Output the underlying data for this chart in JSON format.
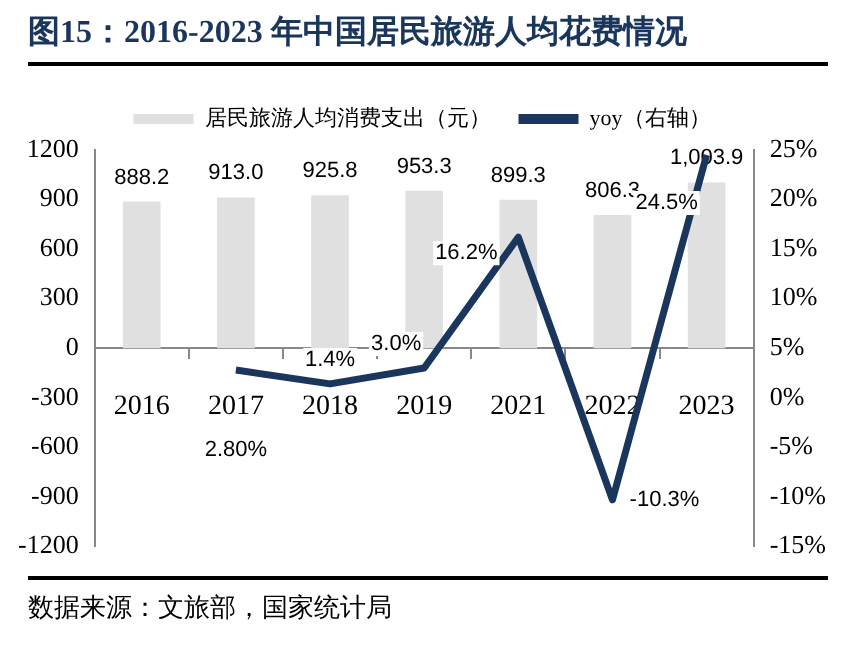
{
  "chart_data": {
    "type": "bar",
    "title": "图15：2016-2023 年中国居民旅游人均花费情况",
    "categories": [
      "2016",
      "2017",
      "2018",
      "2019",
      "2021",
      "2022",
      "2023"
    ],
    "series": [
      {
        "name": "居民旅游人均消费支出（元）",
        "color": "#e0e0e0",
        "values": [
          888.2,
          913.0,
          925.8,
          953.3,
          899.3,
          806.3,
          1003.9
        ],
        "value_labels": [
          "888.2",
          "913.0",
          "925.8",
          "953.3",
          "899.3",
          "806.3",
          "1,003.9"
        ]
      },
      {
        "name": "yoy（右轴）",
        "type": "line",
        "axis": "y2",
        "color": "#1b365d",
        "values": [
          null,
          2.8,
          1.4,
          3.0,
          16.2,
          -10.3,
          24.5
        ],
        "value_labels": [
          null,
          "2.80%",
          "1.4%",
          "3.0%",
          "16.2%",
          "-10.3%",
          "24.5%"
        ]
      }
    ],
    "ylim": [
      -1200,
      1200
    ],
    "yticks": [
      -1200,
      -900,
      -600,
      -300,
      0,
      300,
      600,
      900,
      1200
    ],
    "y2lim": [
      -15,
      25
    ],
    "y2ticks": [
      {
        "value": -15,
        "label": "-15%"
      },
      {
        "value": -10,
        "label": "-10%"
      },
      {
        "value": -5,
        "label": "-5%"
      },
      {
        "value": 0,
        "label": "0%"
      },
      {
        "value": 5,
        "label": "5%"
      },
      {
        "value": 10,
        "label": "10%"
      },
      {
        "value": 15,
        "label": "15%"
      },
      {
        "value": 20,
        "label": "20%"
      },
      {
        "value": 25,
        "label": "25%"
      }
    ],
    "grid": false,
    "legend": "top",
    "marker": "none",
    "line_style": "solid",
    "annotations": [
      "数据来源：文旅部，国家统计局"
    ]
  }
}
